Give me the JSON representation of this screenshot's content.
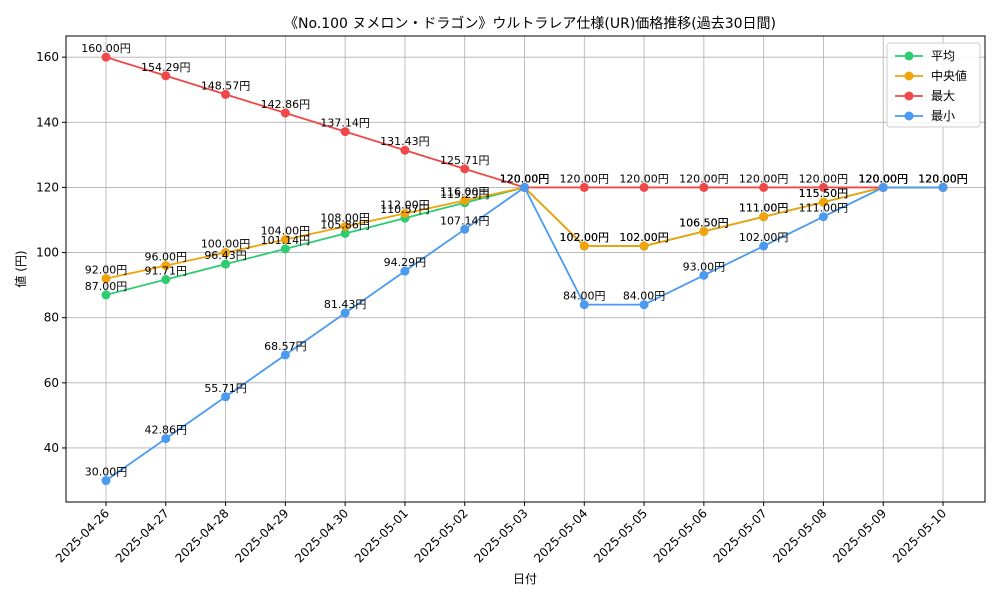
{
  "chart_data": {
    "type": "line",
    "title": "《No.100 ヌメロン・ドラゴン》ウルトラレア仕様(UR)価格推移(過去30日間)",
    "xlabel": "日付",
    "ylabel": "値 (円)",
    "ylim": [
      23.4,
      166.5
    ],
    "yticks": [
      40,
      60,
      80,
      100,
      120,
      140,
      160
    ],
    "grid": true,
    "legend_position": "top-right",
    "label_suffix": "円",
    "categories": [
      "2025-04-26",
      "2025-04-27",
      "2025-04-28",
      "2025-04-29",
      "2025-04-30",
      "2025-05-01",
      "2025-05-02",
      "2025-05-03",
      "2025-05-04",
      "2025-05-05",
      "2025-05-06",
      "2025-05-07",
      "2025-05-08",
      "2025-05-09",
      "2025-05-10"
    ],
    "series": [
      {
        "name": "平均",
        "color": "#2ecc71",
        "values": [
          87.0,
          91.71,
          96.43,
          101.14,
          105.86,
          110.57,
          115.29,
          120.0,
          102.0,
          102.0,
          106.5,
          111.0,
          115.5,
          120.0,
          120.0
        ]
      },
      {
        "name": "中央値",
        "color": "#f0a30a",
        "values": [
          92.0,
          96.0,
          100.0,
          104.0,
          108.0,
          112.0,
          116.0,
          120.0,
          102.0,
          102.0,
          106.5,
          111.0,
          115.5,
          120.0,
          120.0
        ]
      },
      {
        "name": "最大",
        "color": "#f04848",
        "values": [
          160.0,
          154.29,
          148.57,
          142.86,
          137.14,
          131.43,
          125.71,
          120.0,
          120.0,
          120.0,
          120.0,
          120.0,
          120.0,
          120.0,
          120.0
        ]
      },
      {
        "name": "最小",
        "color": "#4a9af0",
        "values": [
          30.0,
          42.86,
          55.71,
          68.57,
          81.43,
          94.29,
          107.14,
          120.0,
          84.0,
          84.0,
          93.0,
          102.0,
          111.0,
          120.0,
          120.0
        ]
      }
    ]
  }
}
